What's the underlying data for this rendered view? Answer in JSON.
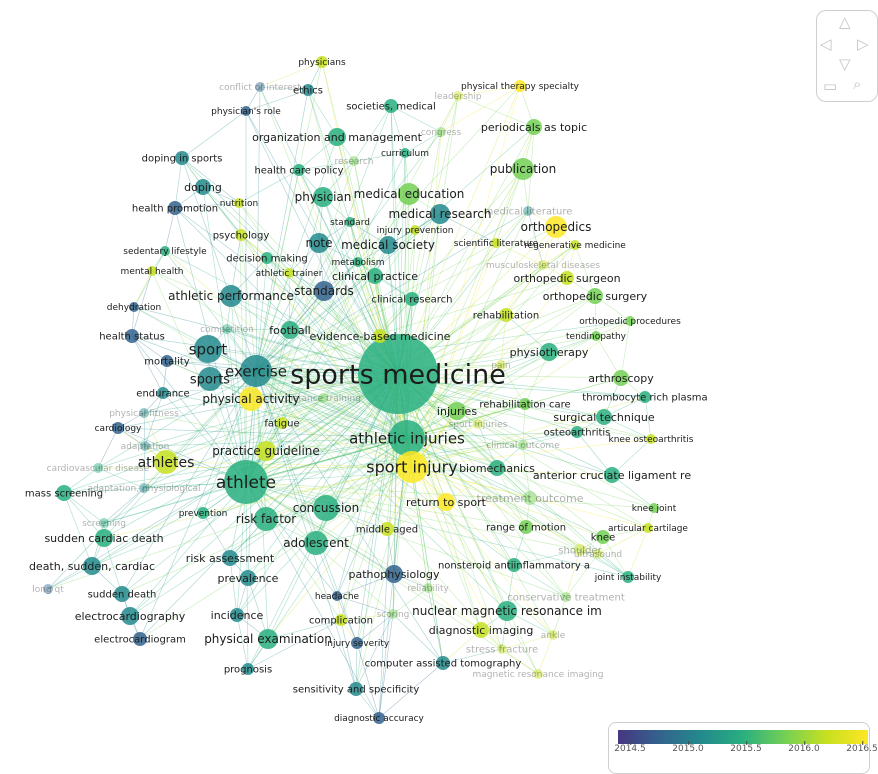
{
  "legend": {
    "ticks": [
      "2014.5",
      "2015.0",
      "2015.5",
      "2016.0",
      "2016.5"
    ]
  },
  "nav_icons": [
    "triangle-up-icon",
    "triangle-left-icon",
    "triangle-right-icon",
    "triangle-down-icon",
    "zoom-fit-icon",
    "zoom-icon"
  ],
  "palette": [
    "#453781",
    "#33638d",
    "#238a8d",
    "#29af7f",
    "#73d055",
    "#c7e020",
    "#fde725"
  ],
  "nodes": [
    {
      "label": "sports medicine",
      "cat": "main",
      "size": 40,
      "color": 3,
      "fs": 27
    },
    {
      "label": "athletic injuries",
      "cat": "main",
      "size": 18,
      "color": 3,
      "fs": 15
    },
    {
      "label": "sport injury",
      "cat": "main",
      "size": 16,
      "color": 6,
      "fs": 16
    },
    {
      "label": "athlete",
      "cat": "main",
      "size": 22,
      "color": 3,
      "fs": 17
    },
    {
      "label": "athletes",
      "cat": "main",
      "size": 12,
      "color": 5,
      "fs": 14
    },
    {
      "label": "exercise",
      "cat": "main",
      "size": 16,
      "color": 2,
      "fs": 15
    },
    {
      "label": "sport",
      "cat": "main",
      "size": 14,
      "color": 2,
      "fs": 15
    },
    {
      "label": "sports",
      "cat": "main",
      "size": 12,
      "color": 2,
      "fs": 13
    },
    {
      "label": "physical activity",
      "cat": "main",
      "size": 12,
      "color": 6,
      "fs": 12
    },
    {
      "label": "athletic performance",
      "cat": "main",
      "size": 11,
      "color": 2,
      "fs": 12
    },
    {
      "label": "standards",
      "cat": "main",
      "size": 10,
      "color": 1,
      "fs": 12
    },
    {
      "label": "football",
      "cat": "main",
      "size": 9,
      "color": 3,
      "fs": 11
    },
    {
      "label": "evidence-based medicine",
      "cat": "main",
      "size": 7,
      "color": 5,
      "fs": 11
    },
    {
      "label": "practice guideline",
      "cat": "main",
      "size": 10,
      "color": 5,
      "fs": 12
    },
    {
      "label": "risk factor",
      "cat": "main",
      "size": 12,
      "color": 3,
      "fs": 12
    },
    {
      "label": "concussion",
      "cat": "main",
      "size": 13,
      "color": 3,
      "fs": 12
    },
    {
      "label": "adolescent",
      "cat": "main",
      "size": 12,
      "color": 3,
      "fs": 12
    },
    {
      "label": "risk assessment",
      "cat": "main",
      "size": 8,
      "color": 2,
      "fs": 11
    },
    {
      "label": "prevalence",
      "cat": "main",
      "size": 8,
      "color": 2,
      "fs": 11
    },
    {
      "label": "incidence",
      "cat": "main",
      "size": 7,
      "color": 2,
      "fs": 11
    },
    {
      "label": "physical examination",
      "cat": "main",
      "size": 10,
      "color": 3,
      "fs": 12
    },
    {
      "label": "pathophysiology",
      "cat": "main",
      "size": 9,
      "color": 1,
      "fs": 11
    },
    {
      "label": "nuclear magnetic resonance im",
      "cat": "main",
      "size": 10,
      "color": 3,
      "fs": 12
    },
    {
      "label": "diagnostic imaging",
      "cat": "main",
      "size": 8,
      "color": 5,
      "fs": 11
    },
    {
      "label": "nonsteroid antiinflammatory a",
      "cat": "main",
      "size": 7,
      "color": 3,
      "fs": 10
    },
    {
      "label": "return to sport",
      "cat": "main",
      "size": 9,
      "color": 6,
      "fs": 11
    },
    {
      "label": "middle aged",
      "cat": "main",
      "size": 7,
      "color": 5,
      "fs": 10
    },
    {
      "label": "range of motion",
      "cat": "main",
      "size": 7,
      "color": 4,
      "fs": 10
    },
    {
      "label": "knee",
      "cat": "main",
      "size": 7,
      "color": 4,
      "fs": 10
    },
    {
      "label": "biomechanics",
      "cat": "main",
      "size": 8,
      "color": 3,
      "fs": 11
    },
    {
      "label": "injuries",
      "cat": "main",
      "size": 9,
      "color": 4,
      "fs": 11
    },
    {
      "label": "rehabilitation care",
      "cat": "main",
      "size": 6,
      "color": 4,
      "fs": 10
    },
    {
      "label": "surgical technique",
      "cat": "main",
      "size": 8,
      "color": 3,
      "fs": 11
    },
    {
      "label": "osteoarthritis",
      "cat": "main",
      "size": 6,
      "color": 3,
      "fs": 10
    },
    {
      "label": "anterior cruciate ligament re",
      "cat": "main",
      "size": 8,
      "color": 3,
      "fs": 11
    },
    {
      "label": "arthroscopy",
      "cat": "main",
      "size": 8,
      "color": 4,
      "fs": 11
    },
    {
      "label": "thrombocyte rich plasma",
      "cat": "main",
      "size": 6,
      "color": 3,
      "fs": 10
    },
    {
      "label": "physiotherapy",
      "cat": "main",
      "size": 9,
      "color": 3,
      "fs": 11
    },
    {
      "label": "orthopedics",
      "cat": "main",
      "size": 11,
      "color": 6,
      "fs": 12
    },
    {
      "label": "orthopedic surgery",
      "cat": "main",
      "size": 8,
      "color": 4,
      "fs": 11
    },
    {
      "label": "orthopedic surgeon",
      "cat": "main",
      "size": 7,
      "color": 5,
      "fs": 11
    },
    {
      "label": "publication",
      "cat": "main",
      "size": 11,
      "color": 4,
      "fs": 12
    },
    {
      "label": "periodicals as topic",
      "cat": "main",
      "size": 8,
      "color": 4,
      "fs": 11
    },
    {
      "label": "medical education",
      "cat": "main",
      "size": 11,
      "color": 4,
      "fs": 12
    },
    {
      "label": "medical research",
      "cat": "main",
      "size": 10,
      "color": 2,
      "fs": 12
    },
    {
      "label": "medical society",
      "cat": "main",
      "size": 9,
      "color": 2,
      "fs": 12
    },
    {
      "label": "clinical practice",
      "cat": "main",
      "size": 8,
      "color": 3,
      "fs": 11
    },
    {
      "label": "clinical research",
      "cat": "main",
      "size": 7,
      "color": 3,
      "fs": 10
    },
    {
      "label": "note",
      "cat": "main",
      "size": 10,
      "color": 2,
      "fs": 12
    },
    {
      "label": "physician",
      "cat": "main",
      "size": 10,
      "color": 3,
      "fs": 12
    },
    {
      "label": "organization and management",
      "cat": "main",
      "size": 9,
      "color": 3,
      "fs": 11
    },
    {
      "label": "societies, medical",
      "cat": "main",
      "size": 7,
      "color": 3,
      "fs": 10
    },
    {
      "label": "ethics",
      "cat": "main",
      "size": 6,
      "color": 2,
      "fs": 10
    },
    {
      "label": "doping",
      "cat": "main",
      "size": 8,
      "color": 2,
      "fs": 11
    },
    {
      "label": "doping in sports",
      "cat": "main",
      "size": 7,
      "color": 2,
      "fs": 10
    },
    {
      "label": "health promotion",
      "cat": "main",
      "size": 7,
      "color": 1,
      "fs": 10
    },
    {
      "label": "psychology",
      "cat": "main",
      "size": 6,
      "color": 5,
      "fs": 10
    },
    {
      "label": "decision making",
      "cat": "main",
      "size": 6,
      "color": 3,
      "fs": 10
    },
    {
      "label": "health care policy",
      "cat": "main",
      "size": 6,
      "color": 3,
      "fs": 10
    },
    {
      "label": "health status",
      "cat": "main",
      "size": 7,
      "color": 1,
      "fs": 10
    },
    {
      "label": "mortality",
      "cat": "main",
      "size": 6,
      "color": 1,
      "fs": 10
    },
    {
      "label": "endurance",
      "cat": "main",
      "size": 6,
      "color": 2,
      "fs": 10
    },
    {
      "label": "fatigue",
      "cat": "main",
      "size": 6,
      "color": 5,
      "fs": 10
    },
    {
      "label": "cardiology",
      "cat": "main",
      "size": 6,
      "color": 1,
      "fs": 9
    },
    {
      "label": "prevention",
      "cat": "main",
      "size": 6,
      "color": 3,
      "fs": 9
    },
    {
      "label": "mass screening",
      "cat": "main",
      "size": 8,
      "color": 3,
      "fs": 10
    },
    {
      "label": "sudden cardiac death",
      "cat": "main",
      "size": 9,
      "color": 3,
      "fs": 11
    },
    {
      "label": "death, sudden, cardiac",
      "cat": "main",
      "size": 9,
      "color": 2,
      "fs": 11
    },
    {
      "label": "sudden death",
      "cat": "main",
      "size": 8,
      "color": 2,
      "fs": 10
    },
    {
      "label": "electrocardiography",
      "cat": "main",
      "size": 9,
      "color": 2,
      "fs": 11
    },
    {
      "label": "electrocardiogram",
      "cat": "main",
      "size": 7,
      "color": 1,
      "fs": 10
    },
    {
      "label": "prognosis",
      "cat": "main",
      "size": 6,
      "color": 2,
      "fs": 10
    },
    {
      "label": "sensitivity and specificity",
      "cat": "main",
      "size": 7,
      "color": 2,
      "fs": 10
    },
    {
      "label": "diagnostic accuracy",
      "cat": "main",
      "size": 6,
      "color": 1,
      "fs": 9
    },
    {
      "label": "computer assisted tomography",
      "cat": "main",
      "size": 7,
      "color": 2,
      "fs": 10
    },
    {
      "label": "complication",
      "cat": "main",
      "size": 6,
      "color": 5,
      "fs": 10
    },
    {
      "label": "injury severity",
      "cat": "main",
      "size": 6,
      "color": 1,
      "fs": 9
    },
    {
      "label": "headache",
      "cat": "main",
      "size": 5,
      "color": 1,
      "fs": 9
    },
    {
      "label": "physicians",
      "cat": "main",
      "size": 6,
      "color": 5,
      "fs": 9
    },
    {
      "label": "physician's role",
      "cat": "main",
      "size": 5,
      "color": 1,
      "fs": 9
    },
    {
      "label": "physical therapy specialty",
      "cat": "main",
      "size": 6,
      "color": 6,
      "fs": 9
    },
    {
      "label": "curriculum",
      "cat": "main",
      "size": 5,
      "color": 3,
      "fs": 9
    },
    {
      "label": "standard",
      "cat": "main",
      "size": 5,
      "color": 3,
      "fs": 9
    },
    {
      "label": "injury prevention",
      "cat": "main",
      "size": 5,
      "color": 5,
      "fs": 9
    },
    {
      "label": "scientific literature",
      "cat": "main",
      "size": 5,
      "color": 5,
      "fs": 9
    },
    {
      "label": "regenerative medicine",
      "cat": "main",
      "size": 5,
      "color": 5,
      "fs": 9
    },
    {
      "label": "metabolism",
      "cat": "main",
      "size": 5,
      "color": 3,
      "fs": 9
    },
    {
      "label": "rehabilitation",
      "cat": "main",
      "size": 7,
      "color": 5,
      "fs": 10
    },
    {
      "label": "orthopedic procedures",
      "cat": "main",
      "size": 5,
      "color": 4,
      "fs": 9
    },
    {
      "label": "tendinopathy",
      "cat": "main",
      "size": 5,
      "color": 4,
      "fs": 9
    },
    {
      "label": "knee osteoarthritis",
      "cat": "main",
      "size": 5,
      "color": 5,
      "fs": 9
    },
    {
      "label": "knee joint",
      "cat": "main",
      "size": 5,
      "color": 4,
      "fs": 9
    },
    {
      "label": "articular cartilage",
      "cat": "main",
      "size": 5,
      "color": 5,
      "fs": 9
    },
    {
      "label": "joint instability",
      "cat": "main",
      "size": 6,
      "color": 3,
      "fs": 9
    },
    {
      "label": "sedentary lifestyle",
      "cat": "main",
      "size": 5,
      "color": 3,
      "fs": 9
    },
    {
      "label": "mental health",
      "cat": "main",
      "size": 5,
      "color": 5,
      "fs": 9
    },
    {
      "label": "dehydration",
      "cat": "main",
      "size": 5,
      "color": 1,
      "fs": 9
    },
    {
      "label": "nutrition",
      "cat": "main",
      "size": 5,
      "color": 5,
      "fs": 9
    },
    {
      "label": "athletic trainer",
      "cat": "main",
      "size": 5,
      "color": 5,
      "fs": 9
    },
    {
      "label": "clinical outcome",
      "cat": "faint",
      "size": 5,
      "color": 4,
      "fs": 9
    },
    {
      "label": "treatment outcome",
      "cat": "faint",
      "size": 7,
      "color": 4,
      "fs": 11
    },
    {
      "label": "shoulder",
      "cat": "faint",
      "size": 6,
      "color": 5,
      "fs": 10
    },
    {
      "label": "stress fracture",
      "cat": "faint",
      "size": 5,
      "color": 5,
      "fs": 10
    },
    {
      "label": "conservative treatment",
      "cat": "faint",
      "size": 5,
      "color": 4,
      "fs": 10
    },
    {
      "label": "conflict of interest",
      "cat": "faint",
      "size": 5,
      "color": 1,
      "fs": 9
    },
    {
      "label": "leadership",
      "cat": "faint",
      "size": 5,
      "color": 5,
      "fs": 9
    },
    {
      "label": "congress",
      "cat": "faint",
      "size": 5,
      "color": 4,
      "fs": 9
    },
    {
      "label": "research",
      "cat": "faint",
      "size": 5,
      "color": 4,
      "fs": 9
    },
    {
      "label": "medical literature",
      "cat": "faint",
      "size": 5,
      "color": 2,
      "fs": 10
    },
    {
      "label": "musculoskeletal diseases",
      "cat": "faint",
      "size": 5,
      "color": 5,
      "fs": 9
    },
    {
      "label": "pain",
      "cat": "faint",
      "size": 5,
      "color": 5,
      "fs": 9
    },
    {
      "label": "competition",
      "cat": "faint",
      "size": 5,
      "color": 3,
      "fs": 9
    },
    {
      "label": "physical fitness",
      "cat": "faint",
      "size": 5,
      "color": 2,
      "fs": 9
    },
    {
      "label": "adaptation",
      "cat": "faint",
      "size": 5,
      "color": 2,
      "fs": 9
    },
    {
      "label": "cardiovascular disease",
      "cat": "faint",
      "size": 5,
      "color": 3,
      "fs": 9
    },
    {
      "label": "adaptation, physiological",
      "cat": "faint",
      "size": 5,
      "color": 2,
      "fs": 9
    },
    {
      "label": "distance training",
      "cat": "faint",
      "size": 5,
      "color": 4,
      "fs": 9
    },
    {
      "label": "screening",
      "cat": "faint",
      "size": 5,
      "color": 3,
      "fs": 9
    },
    {
      "label": "long qt",
      "cat": "faint",
      "size": 5,
      "color": 1,
      "fs": 9
    },
    {
      "label": "scoring",
      "cat": "faint",
      "size": 5,
      "color": 4,
      "fs": 9
    },
    {
      "label": "ultrasound",
      "cat": "faint",
      "size": 5,
      "color": 5,
      "fs": 9
    },
    {
      "label": "magnetic resonance imaging",
      "cat": "faint",
      "size": 5,
      "color": 5,
      "fs": 9
    },
    {
      "label": "ankle",
      "cat": "faint",
      "size": 5,
      "color": 5,
      "fs": 9
    },
    {
      "label": "reliability",
      "cat": "faint",
      "size": 5,
      "color": 4,
      "fs": 9
    },
    {
      "label": "sport injuries",
      "cat": "faint",
      "size": 5,
      "color": 5,
      "fs": 9
    }
  ]
}
